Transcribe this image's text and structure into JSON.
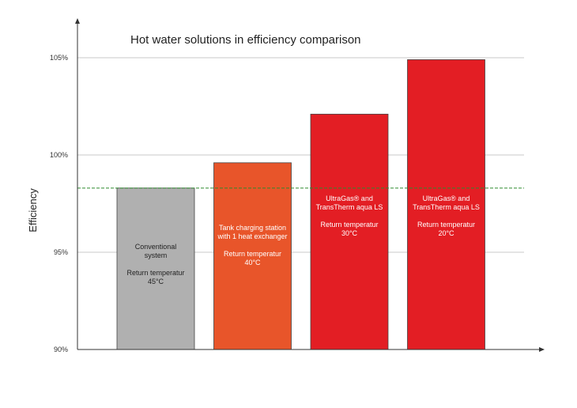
{
  "chart_data": {
    "type": "bar",
    "title": "Hot water solutions in efficiency comparison",
    "xlabel": "",
    "ylabel": "Efficiency",
    "ylim": [
      90,
      105
    ],
    "yticks": [
      90,
      95,
      100,
      105
    ],
    "ytick_labels": [
      "90%",
      "95%",
      "100%",
      "105%"
    ],
    "grid": true,
    "reference_line": {
      "value": 98.3,
      "style": "dashed",
      "color": "#2e8b2e"
    },
    "categories": [
      [
        "Conventional",
        "system",
        "",
        "Return temperatur",
        "45°C"
      ],
      [
        "Tank charging station",
        "with 1 heat exchanger",
        "",
        "Return temperatur",
        "40°C"
      ],
      [
        "UltraGas® and",
        "TransTherm aqua LS",
        "",
        "Return temperatur",
        "30°C"
      ],
      [
        "UltraGas® and",
        "TransTherm aqua LS",
        "",
        "Return temperatur",
        "20°C"
      ]
    ],
    "values": [
      98.3,
      99.6,
      102.1,
      104.9
    ],
    "colors": [
      "#b0b0b0",
      "#e8552a",
      "#e31e24",
      "#e31e24"
    ],
    "label_colors": [
      "#222222",
      "#ffffff",
      "#ffffff",
      "#ffffff"
    ]
  }
}
